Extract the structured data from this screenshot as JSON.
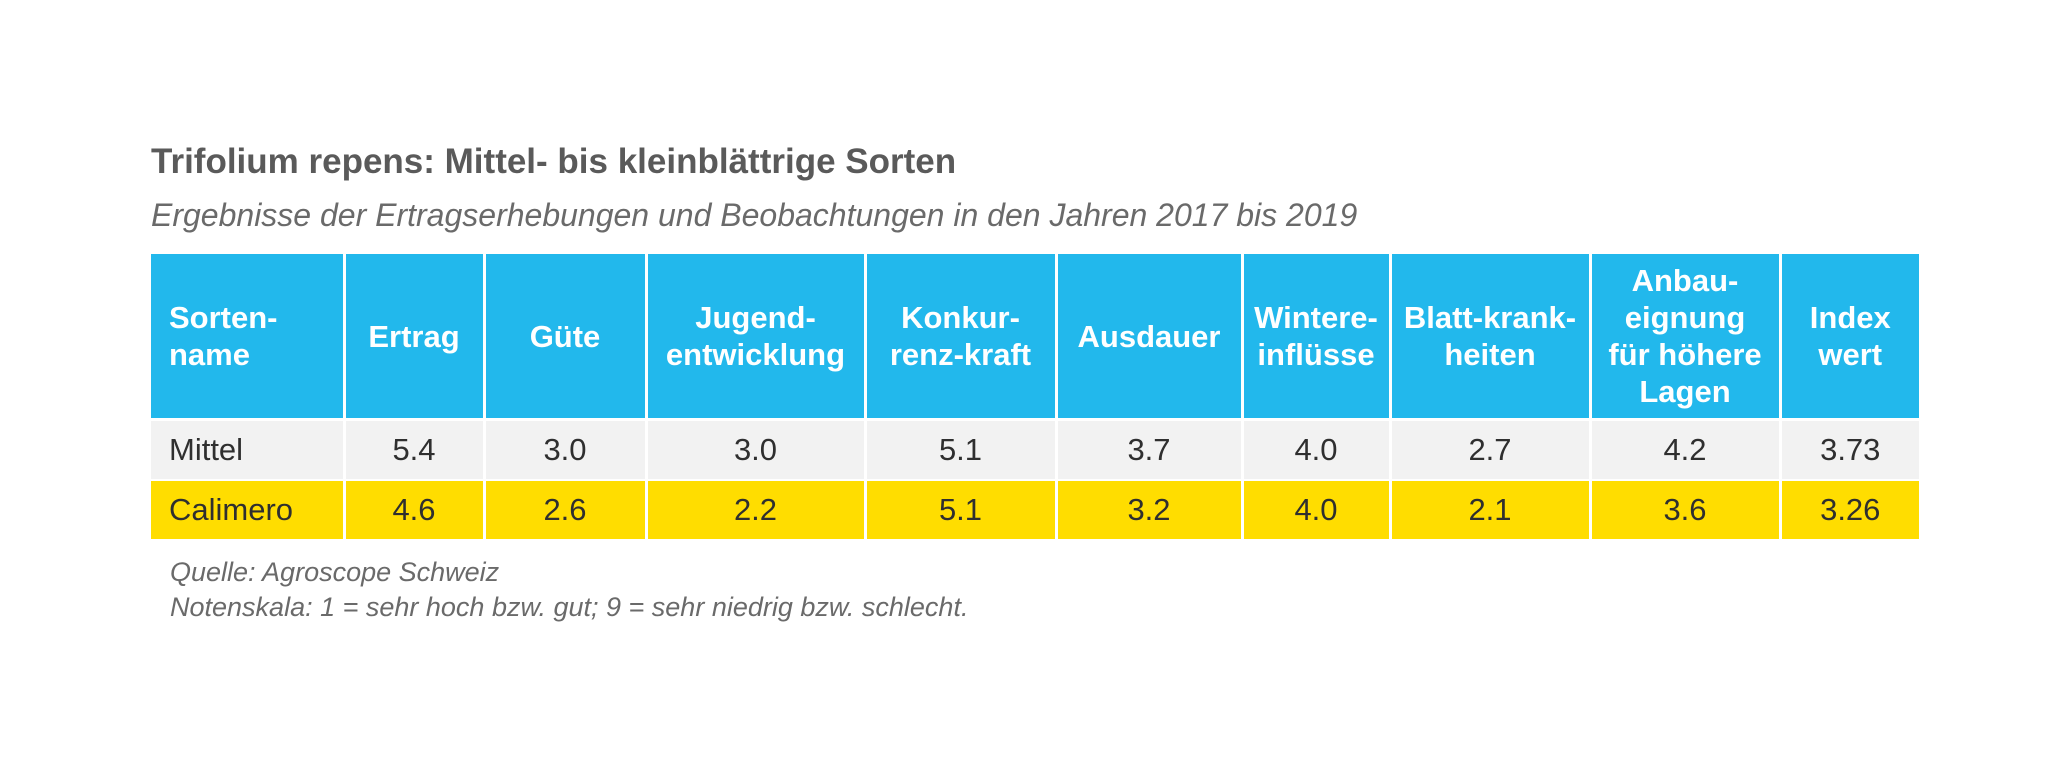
{
  "title": "Trifolium repens: Mittel- bis kleinblättrige Sorten",
  "subtitle": "Ergebnisse der Ertragserhebungen und Beobachtungen in den Jahren 2017 bis 2019",
  "table": {
    "columns": [
      [
        "Sorten-",
        "name"
      ],
      [
        "Ertrag"
      ],
      [
        "Güte"
      ],
      [
        "Jugend-",
        "entwicklung"
      ],
      [
        "Konkur-",
        "renz-kraft"
      ],
      [
        "Ausdauer"
      ],
      [
        "Wintere-",
        "inflüsse"
      ],
      [
        "Blatt-krank-",
        "heiten"
      ],
      [
        "Anbau-",
        "eignung",
        "für höhere",
        "Lagen"
      ],
      [
        "Index",
        "wert"
      ]
    ],
    "rows": [
      [
        "Mittel",
        "5.4",
        "3.0",
        "3.0",
        "5.1",
        "3.7",
        "4.0",
        "2.7",
        "4.2",
        "3.73"
      ],
      [
        "Calimero",
        "4.6",
        "2.6",
        "2.2",
        "5.1",
        "3.2",
        "4.0",
        "2.1",
        "3.6",
        "3.26"
      ]
    ]
  },
  "footnotes": [
    "Quelle: Agroscope Schweiz",
    "Notenskala: 1 = sehr hoch bzw. gut; 9 = sehr niedrig bzw. schlecht."
  ],
  "colors": {
    "header": "#22b8ec",
    "row_mittel": "#f2f2f2",
    "row_calimero": "#ffdd00"
  },
  "chart_data": {
    "type": "table",
    "title": "Trifolium repens: Mittel- bis kleinblättrige Sorten",
    "subtitle": "Ergebnisse der Ertragserhebungen und Beobachtungen in den Jahren 2017 bis 2019",
    "columns": [
      "Sortenname",
      "Ertrag",
      "Güte",
      "Jugendentwicklung",
      "Konkurrenzkraft",
      "Ausdauer",
      "Wintereinflüsse",
      "Blattkrankheiten",
      "Anbaueignung für höhere Lagen",
      "Indexwert"
    ],
    "rows": [
      {
        "name": "Mittel",
        "values": [
          5.4,
          3.0,
          3.0,
          5.1,
          3.7,
          4.0,
          2.7,
          4.2,
          3.73
        ]
      },
      {
        "name": "Calimero",
        "values": [
          4.6,
          2.6,
          2.2,
          5.1,
          3.2,
          4.0,
          2.1,
          3.6,
          3.26
        ]
      }
    ]
  }
}
